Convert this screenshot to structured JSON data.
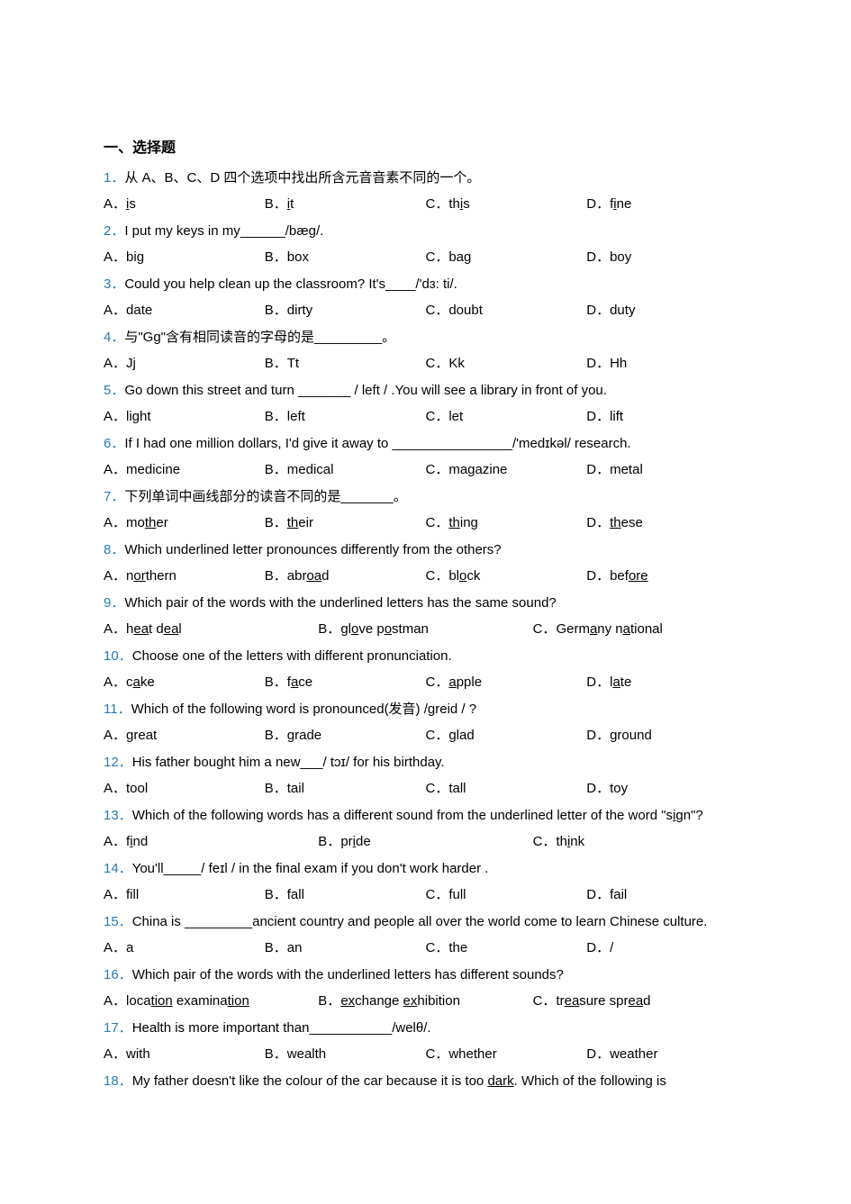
{
  "section_title": "一、选择题",
  "q_num_color": "#2a7ab0",
  "text_color": "#000000",
  "questions": [
    {
      "num": "1．",
      "text_parts": [
        {
          "t": "从 A、B、C、D 四个选项中找出所含元音音素不同的一个。"
        }
      ],
      "options": [
        {
          "label": "A．",
          "parts": [
            {
              "t": "i",
              "u": true
            },
            {
              "t": "s"
            }
          ]
        },
        {
          "label": "B．",
          "parts": [
            {
              "t": "i",
              "u": true
            },
            {
              "t": "t"
            }
          ]
        },
        {
          "label": "C．",
          "parts": [
            {
              "t": "th"
            },
            {
              "t": "i",
              "u": true
            },
            {
              "t": "s"
            }
          ]
        },
        {
          "label": "D．",
          "parts": [
            {
              "t": "f"
            },
            {
              "t": "i",
              "u": true
            },
            {
              "t": "ne"
            }
          ]
        }
      ],
      "cols": 4
    },
    {
      "num": "2．",
      "text_parts": [
        {
          "t": "I put my keys in my______/bæg/."
        }
      ],
      "options": [
        {
          "label": "A．",
          "parts": [
            {
              "t": "big"
            }
          ]
        },
        {
          "label": "B．",
          "parts": [
            {
              "t": "box"
            }
          ]
        },
        {
          "label": "C．",
          "parts": [
            {
              "t": "bag"
            }
          ]
        },
        {
          "label": "D．",
          "parts": [
            {
              "t": "boy"
            }
          ]
        }
      ],
      "cols": 4
    },
    {
      "num": "3．",
      "text_parts": [
        {
          "t": "Could you help clean up the classroom? It's____/'dɜ: ti/."
        }
      ],
      "options": [
        {
          "label": "A．",
          "parts": [
            {
              "t": "date"
            }
          ]
        },
        {
          "label": "B．",
          "parts": [
            {
              "t": "dirty"
            }
          ]
        },
        {
          "label": "C．",
          "parts": [
            {
              "t": "doubt"
            }
          ]
        },
        {
          "label": "D．",
          "parts": [
            {
              "t": "duty"
            }
          ]
        }
      ],
      "cols": 4
    },
    {
      "num": "4．",
      "text_parts": [
        {
          "t": "与\"Gg\"含有相同读音的字母的是_________。"
        }
      ],
      "options": [
        {
          "label": "A．",
          "parts": [
            {
              "t": "Jj"
            }
          ]
        },
        {
          "label": "B．",
          "parts": [
            {
              "t": "Tt"
            }
          ]
        },
        {
          "label": "C．",
          "parts": [
            {
              "t": "Kk"
            }
          ]
        },
        {
          "label": "D．",
          "parts": [
            {
              "t": "Hh"
            }
          ]
        }
      ],
      "cols": 4
    },
    {
      "num": "5．",
      "text_parts": [
        {
          "t": "Go down this street and turn _______ / left / .You will see a library in front of you."
        }
      ],
      "options": [
        {
          "label": "A．",
          "parts": [
            {
              "t": "light"
            }
          ]
        },
        {
          "label": "B．",
          "parts": [
            {
              "t": "left"
            }
          ]
        },
        {
          "label": "C．",
          "parts": [
            {
              "t": "let"
            }
          ]
        },
        {
          "label": "D．",
          "parts": [
            {
              "t": "lift"
            }
          ]
        }
      ],
      "cols": 4
    },
    {
      "num": "6．",
      "text_parts": [
        {
          "t": "If I had one million dollars, I'd give it away to ________________/'medɪkəl/ research."
        }
      ],
      "options": [
        {
          "label": "A．",
          "parts": [
            {
              "t": "medicine"
            }
          ]
        },
        {
          "label": "B．",
          "parts": [
            {
              "t": "medical"
            }
          ]
        },
        {
          "label": "C．",
          "parts": [
            {
              "t": "magazine"
            }
          ]
        },
        {
          "label": "D．",
          "parts": [
            {
              "t": "metal"
            }
          ]
        }
      ],
      "cols": 4
    },
    {
      "num": "7．",
      "text_parts": [
        {
          "t": "下列单词中画线部分的读音不同的是_______。"
        }
      ],
      "options": [
        {
          "label": "A．",
          "parts": [
            {
              "t": "mo"
            },
            {
              "t": "th",
              "u": true
            },
            {
              "t": "er"
            }
          ]
        },
        {
          "label": "B．",
          "parts": [
            {
              "t": "th",
              "u": true
            },
            {
              "t": "eir"
            }
          ]
        },
        {
          "label": "C．",
          "parts": [
            {
              "t": "th",
              "u": true
            },
            {
              "t": "ing"
            }
          ]
        },
        {
          "label": "D．",
          "parts": [
            {
              "t": "th",
              "u": true
            },
            {
              "t": "ese"
            }
          ]
        }
      ],
      "cols": 4
    },
    {
      "num": "8．",
      "text_parts": [
        {
          "t": "Which underlined letter pronounces differently from the others?"
        }
      ],
      "options": [
        {
          "label": "A．",
          "parts": [
            {
              "t": "n"
            },
            {
              "t": "or",
              "u": true
            },
            {
              "t": "thern"
            }
          ]
        },
        {
          "label": "B．",
          "parts": [
            {
              "t": "abr"
            },
            {
              "t": "oa",
              "u": true
            },
            {
              "t": "d"
            }
          ]
        },
        {
          "label": "C．",
          "parts": [
            {
              "t": "bl"
            },
            {
              "t": "o",
              "u": true
            },
            {
              "t": "ck"
            }
          ]
        },
        {
          "label": "D．",
          "parts": [
            {
              "t": "bef"
            },
            {
              "t": "ore",
              "u": true
            }
          ]
        }
      ],
      "cols": 4
    },
    {
      "num": "9．",
      "text_parts": [
        {
          "t": "Which pair of the words with the underlined letters has the same sound?"
        }
      ],
      "options": [
        {
          "label": "A．",
          "parts": [
            {
              "t": "h"
            },
            {
              "t": "ea",
              "u": true
            },
            {
              "t": "t d"
            },
            {
              "t": "ea",
              "u": true
            },
            {
              "t": "l"
            }
          ]
        },
        {
          "label": "B．",
          "parts": [
            {
              "t": "gl"
            },
            {
              "t": "o",
              "u": true
            },
            {
              "t": "ve p"
            },
            {
              "t": "o",
              "u": true
            },
            {
              "t": "stman"
            }
          ]
        },
        {
          "label": "C．",
          "parts": [
            {
              "t": "Germ"
            },
            {
              "t": "a",
              "u": true
            },
            {
              "t": "ny n"
            },
            {
              "t": "a",
              "u": true
            },
            {
              "t": "tional"
            }
          ]
        }
      ],
      "cols": 3
    },
    {
      "num": "10．",
      "text_parts": [
        {
          "t": "Choose one of the letters with different pronunciation."
        }
      ],
      "options": [
        {
          "label": "A．",
          "parts": [
            {
              "t": "c"
            },
            {
              "t": "a",
              "u": true
            },
            {
              "t": "ke"
            }
          ]
        },
        {
          "label": "B．",
          "parts": [
            {
              "t": "f"
            },
            {
              "t": "a",
              "u": true
            },
            {
              "t": "ce"
            }
          ]
        },
        {
          "label": "C．",
          "parts": [
            {
              "t": "a",
              "u": true
            },
            {
              "t": "pple"
            }
          ]
        },
        {
          "label": "D．",
          "parts": [
            {
              "t": "l"
            },
            {
              "t": "a",
              "u": true
            },
            {
              "t": "te"
            }
          ]
        }
      ],
      "cols": 4
    },
    {
      "num": "11．",
      "text_parts": [
        {
          "t": "Which of the following word is pronounced(发音) /greid / ?"
        }
      ],
      "options": [
        {
          "label": "A．",
          "parts": [
            {
              "t": "great"
            }
          ]
        },
        {
          "label": "B．",
          "parts": [
            {
              "t": "grade"
            }
          ]
        },
        {
          "label": "C．",
          "parts": [
            {
              "t": "glad"
            }
          ]
        },
        {
          "label": "D．",
          "parts": [
            {
              "t": "ground"
            }
          ]
        }
      ],
      "cols": 4
    },
    {
      "num": "12．",
      "text_parts": [
        {
          "t": "His father bought him a new___/ tɔɪ/ for his birthday."
        }
      ],
      "options": [
        {
          "label": "A．",
          "parts": [
            {
              "t": "tool"
            }
          ]
        },
        {
          "label": "B．",
          "parts": [
            {
              "t": "tail"
            }
          ]
        },
        {
          "label": "C．",
          "parts": [
            {
              "t": "tall"
            }
          ]
        },
        {
          "label": "D．",
          "parts": [
            {
              "t": "toy"
            }
          ]
        }
      ],
      "cols": 4
    },
    {
      "num": "13．",
      "text_parts": [
        {
          "t": "Which of the following words has a different sound from the underlined letter of the word \"s"
        },
        {
          "t": "i",
          "u": true
        },
        {
          "t": "gn\"?"
        }
      ],
      "options": [
        {
          "label": "A．",
          "parts": [
            {
              "t": "f"
            },
            {
              "t": "i",
              "u": true
            },
            {
              "t": "nd"
            }
          ]
        },
        {
          "label": "B．",
          "parts": [
            {
              "t": "pr"
            },
            {
              "t": "i",
              "u": true
            },
            {
              "t": "de"
            }
          ]
        },
        {
          "label": "C．",
          "parts": [
            {
              "t": "th"
            },
            {
              "t": "i",
              "u": true
            },
            {
              "t": "nk"
            }
          ]
        }
      ],
      "cols": 3
    },
    {
      "num": "14．",
      "text_parts": [
        {
          "t": "You'll_____/ feɪl / in the final exam if you don't work harder ."
        }
      ],
      "options": [
        {
          "label": "A．",
          "parts": [
            {
              "t": "fill"
            }
          ]
        },
        {
          "label": "B．",
          "parts": [
            {
              "t": "fall"
            }
          ]
        },
        {
          "label": "C．",
          "parts": [
            {
              "t": "full"
            }
          ]
        },
        {
          "label": "D．",
          "parts": [
            {
              "t": "fail"
            }
          ]
        }
      ],
      "cols": 4
    },
    {
      "num": "15．",
      "text_parts": [
        {
          "t": "China is _________ancient country and people all over the world come to learn Chinese culture."
        }
      ],
      "options": [
        {
          "label": "A．",
          "parts": [
            {
              "t": "a"
            }
          ]
        },
        {
          "label": "B．",
          "parts": [
            {
              "t": "an"
            }
          ]
        },
        {
          "label": "C．",
          "parts": [
            {
              "t": "the"
            }
          ]
        },
        {
          "label": "D．",
          "parts": [
            {
              "t": "/"
            }
          ]
        }
      ],
      "cols": 4
    },
    {
      "num": "16．",
      "text_parts": [
        {
          "t": "Which pair of the words with the underlined letters has different sounds?"
        }
      ],
      "options": [
        {
          "label": "A．",
          "parts": [
            {
              "t": "loca"
            },
            {
              "t": "tion",
              "u": true
            },
            {
              "t": " examina"
            },
            {
              "t": "tion",
              "u": true
            }
          ]
        },
        {
          "label": "B．",
          "parts": [
            {
              "t": "ex",
              "u": true
            },
            {
              "t": "change "
            },
            {
              "t": "ex",
              "u": true
            },
            {
              "t": "hibition"
            }
          ]
        },
        {
          "label": "C．",
          "parts": [
            {
              "t": "tr"
            },
            {
              "t": "ea",
              "u": true
            },
            {
              "t": "sure spr"
            },
            {
              "t": "ea",
              "u": true
            },
            {
              "t": "d"
            }
          ]
        }
      ],
      "cols": 3
    },
    {
      "num": "17．",
      "text_parts": [
        {
          "t": "Health is more important than___________/welθ/."
        }
      ],
      "options": [
        {
          "label": "A．",
          "parts": [
            {
              "t": "with"
            }
          ]
        },
        {
          "label": "B．",
          "parts": [
            {
              "t": "wealth"
            }
          ]
        },
        {
          "label": "C．",
          "parts": [
            {
              "t": "whether"
            }
          ]
        },
        {
          "label": "D．",
          "parts": [
            {
              "t": "weather"
            }
          ]
        }
      ],
      "cols": 4
    },
    {
      "num": "18．",
      "text_parts": [
        {
          "t": "My father doesn't like the colour of the car because it is too "
        },
        {
          "t": "dark",
          "u": true
        },
        {
          "t": ". Which of the following is"
        }
      ],
      "options": [],
      "cols": 4
    }
  ]
}
